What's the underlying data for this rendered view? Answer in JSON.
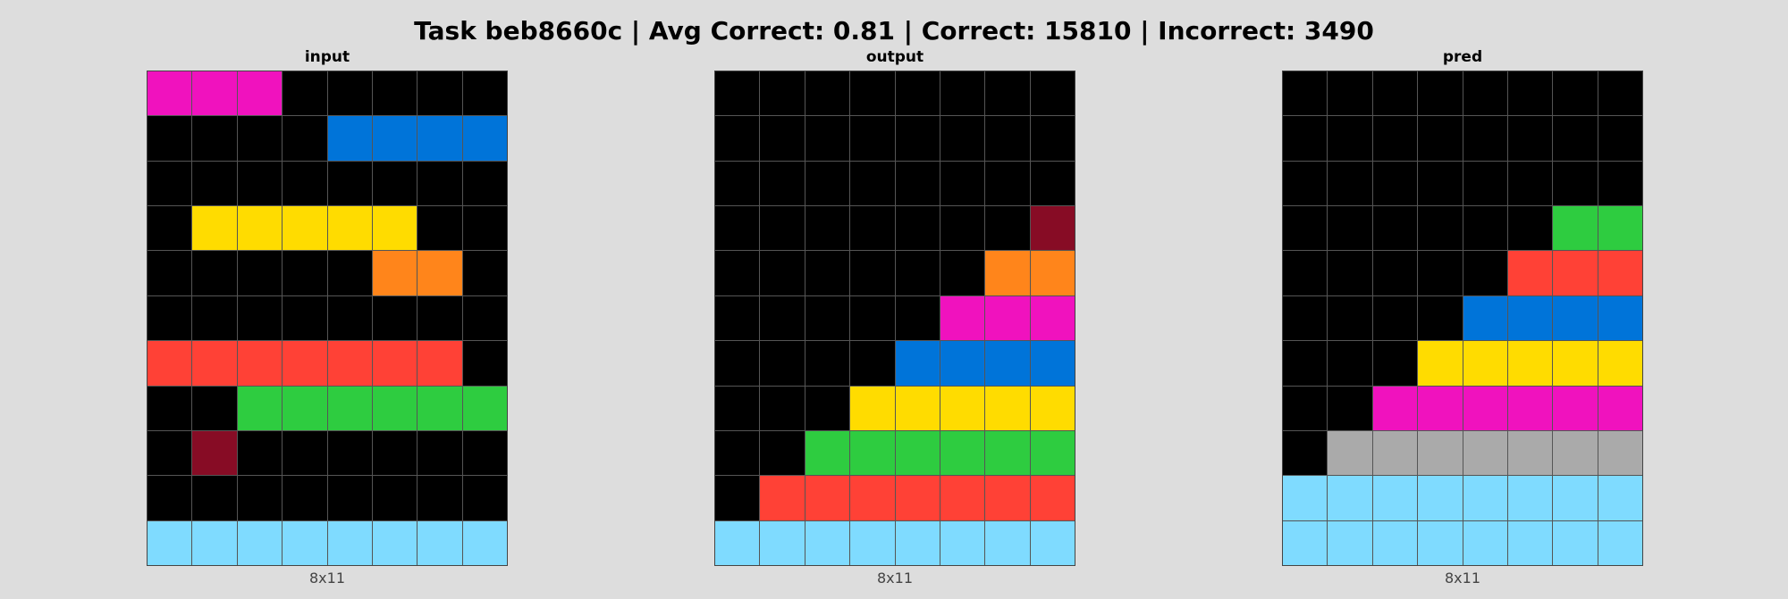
{
  "title": "Task beb8660c | Avg Correct: 0.81 | Correct: 15810 | Incorrect: 3490",
  "palette": {
    "0": "#000000",
    "1": "#0074D9",
    "2": "#FF4136",
    "3": "#2ECC40",
    "4": "#FFDC00",
    "5": "#AAAAAA",
    "6": "#F012BE",
    "7": "#FF851B",
    "8": "#7FDBFF",
    "9": "#870C25"
  },
  "panels": [
    {
      "label": "input",
      "dims": "8x11",
      "grid": [
        [
          6,
          6,
          6,
          0,
          0,
          0,
          0,
          0
        ],
        [
          0,
          0,
          0,
          0,
          1,
          1,
          1,
          1
        ],
        [
          0,
          0,
          0,
          0,
          0,
          0,
          0,
          0
        ],
        [
          0,
          4,
          4,
          4,
          4,
          4,
          0,
          0
        ],
        [
          0,
          0,
          0,
          0,
          0,
          7,
          7,
          0
        ],
        [
          0,
          0,
          0,
          0,
          0,
          0,
          0,
          0
        ],
        [
          2,
          2,
          2,
          2,
          2,
          2,
          2,
          0
        ],
        [
          0,
          0,
          3,
          3,
          3,
          3,
          3,
          3
        ],
        [
          0,
          9,
          0,
          0,
          0,
          0,
          0,
          0
        ],
        [
          0,
          0,
          0,
          0,
          0,
          0,
          0,
          0
        ],
        [
          8,
          8,
          8,
          8,
          8,
          8,
          8,
          8
        ]
      ]
    },
    {
      "label": "output",
      "dims": "8x11",
      "grid": [
        [
          0,
          0,
          0,
          0,
          0,
          0,
          0,
          0
        ],
        [
          0,
          0,
          0,
          0,
          0,
          0,
          0,
          0
        ],
        [
          0,
          0,
          0,
          0,
          0,
          0,
          0,
          0
        ],
        [
          0,
          0,
          0,
          0,
          0,
          0,
          0,
          9
        ],
        [
          0,
          0,
          0,
          0,
          0,
          0,
          7,
          7
        ],
        [
          0,
          0,
          0,
          0,
          0,
          6,
          6,
          6
        ],
        [
          0,
          0,
          0,
          0,
          1,
          1,
          1,
          1
        ],
        [
          0,
          0,
          0,
          4,
          4,
          4,
          4,
          4
        ],
        [
          0,
          0,
          3,
          3,
          3,
          3,
          3,
          3
        ],
        [
          0,
          2,
          2,
          2,
          2,
          2,
          2,
          2
        ],
        [
          8,
          8,
          8,
          8,
          8,
          8,
          8,
          8
        ]
      ]
    },
    {
      "label": "pred",
      "dims": "8x11",
      "grid": [
        [
          0,
          0,
          0,
          0,
          0,
          0,
          0,
          0
        ],
        [
          0,
          0,
          0,
          0,
          0,
          0,
          0,
          0
        ],
        [
          0,
          0,
          0,
          0,
          0,
          0,
          0,
          0
        ],
        [
          0,
          0,
          0,
          0,
          0,
          0,
          3,
          3
        ],
        [
          0,
          0,
          0,
          0,
          0,
          2,
          2,
          2
        ],
        [
          0,
          0,
          0,
          0,
          1,
          1,
          1,
          1
        ],
        [
          0,
          0,
          0,
          4,
          4,
          4,
          4,
          4
        ],
        [
          0,
          0,
          6,
          6,
          6,
          6,
          6,
          6
        ],
        [
          0,
          5,
          5,
          5,
          5,
          5,
          5,
          5
        ],
        [
          8,
          8,
          8,
          8,
          8,
          8,
          8,
          8
        ],
        [
          8,
          8,
          8,
          8,
          8,
          8,
          8,
          8
        ]
      ]
    }
  ]
}
